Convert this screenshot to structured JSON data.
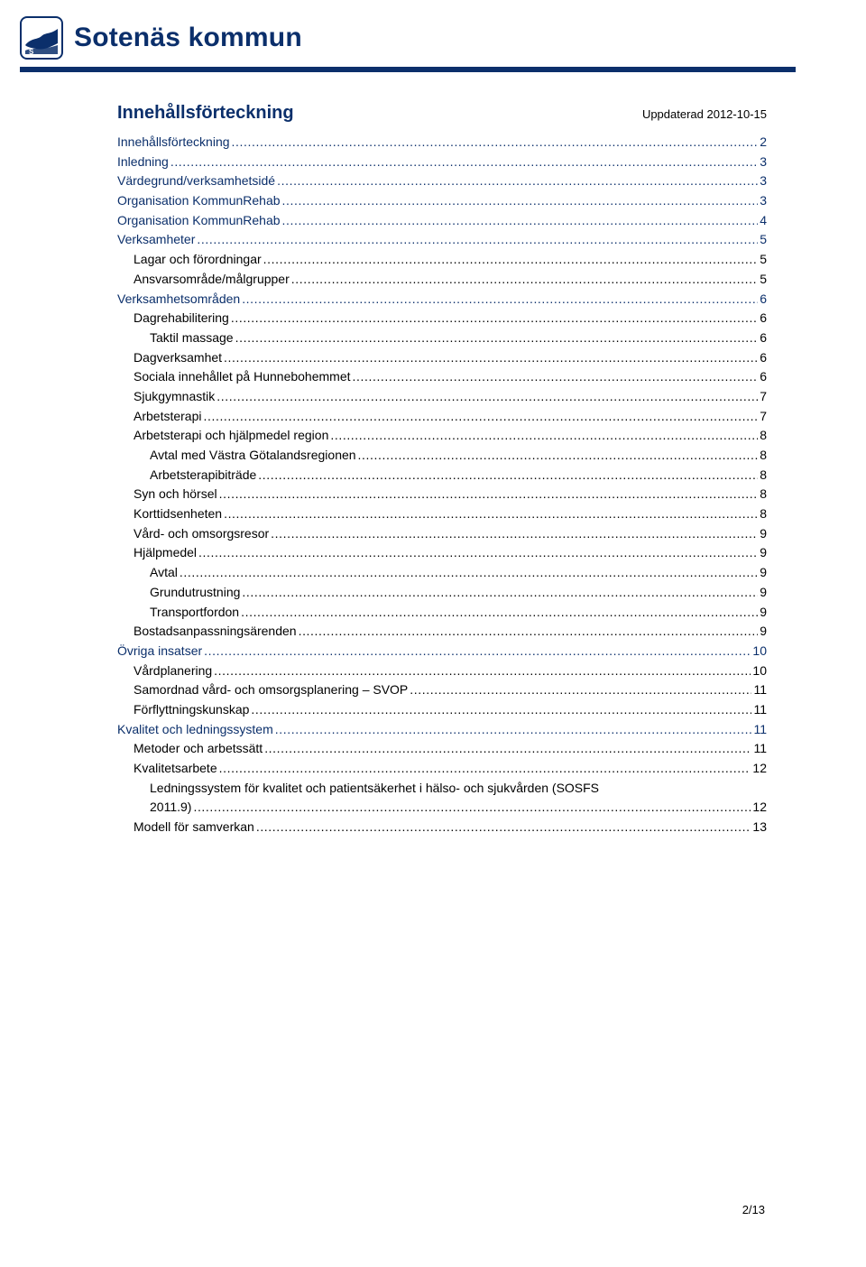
{
  "header": {
    "brand": "Sotenäs kommun",
    "logo_border_color": "#0b2f6b",
    "logo_fill_color": "#0b2f6b",
    "rule_color": "#0b2f6b"
  },
  "document": {
    "title": "Innehållsförteckning",
    "updated_label": "Uppdaterad 2012-10-15",
    "page_indicator": "2/13",
    "title_color": "#0b2f6b",
    "title_fontsize": 20,
    "body_fontsize": 14,
    "text_color": "#000000",
    "background": "#ffffff"
  },
  "toc": {
    "level0_color": "#0b2f6b",
    "entries": [
      {
        "level": 0,
        "label": "Innehållsförteckning",
        "page": "2"
      },
      {
        "level": 0,
        "label": "Inledning",
        "page": "3"
      },
      {
        "level": 0,
        "label": "Värdegrund/verksamhetsidé",
        "page": "3"
      },
      {
        "level": 0,
        "label": "Organisation KommunRehab",
        "page": "3"
      },
      {
        "level": 0,
        "label": "Organisation KommunRehab",
        "page": "4"
      },
      {
        "level": 0,
        "label": "Verksamheter",
        "page": "5"
      },
      {
        "level": 1,
        "label": "Lagar och förordningar",
        "page": "5"
      },
      {
        "level": 1,
        "label": "Ansvarsområde/målgrupper",
        "page": "5"
      },
      {
        "level": 0,
        "label": "Verksamhetsområden",
        "page": "6"
      },
      {
        "level": 1,
        "label": "Dagrehabilitering",
        "page": "6"
      },
      {
        "level": 2,
        "label": "Taktil massage",
        "page": "6"
      },
      {
        "level": 1,
        "label": "Dagverksamhet",
        "page": "6"
      },
      {
        "level": 1,
        "label": "Sociala innehållet på Hunnebohemmet",
        "page": "6"
      },
      {
        "level": 1,
        "label": "Sjukgymnastik",
        "page": "7"
      },
      {
        "level": 1,
        "label": "Arbetsterapi",
        "page": "7"
      },
      {
        "level": 1,
        "label": "Arbetsterapi och hjälpmedel region",
        "page": "8"
      },
      {
        "level": 2,
        "label": "Avtal med Västra Götalandsregionen",
        "page": "8"
      },
      {
        "level": 2,
        "label": "Arbetsterapibiträde",
        "page": "8"
      },
      {
        "level": 1,
        "label": "Syn och hörsel",
        "page": "8"
      },
      {
        "level": 1,
        "label": "Korttidsenheten",
        "page": "8"
      },
      {
        "level": 1,
        "label": "Vård- och omsorgsresor",
        "page": "9"
      },
      {
        "level": 1,
        "label": "Hjälpmedel",
        "page": "9"
      },
      {
        "level": 2,
        "label": "Avtal",
        "page": "9"
      },
      {
        "level": 2,
        "label": "Grundutrustning",
        "page": "9"
      },
      {
        "level": 2,
        "label": "Transportfordon",
        "page": "9"
      },
      {
        "level": 1,
        "label": "Bostadsanpassningsärenden",
        "page": "9"
      },
      {
        "level": 0,
        "label": "Övriga insatser",
        "page": "10"
      },
      {
        "level": 1,
        "label": "Vårdplanering",
        "page": "10"
      },
      {
        "level": 1,
        "label": "Samordnad vård- och omsorgsplanering – SVOP",
        "page": "11"
      },
      {
        "level": 1,
        "label": "Förflyttningskunskap",
        "page": "11"
      },
      {
        "level": 0,
        "label": "Kvalitet och ledningssystem",
        "page": "11"
      },
      {
        "level": 1,
        "label": "Metoder och arbetssätt",
        "page": "11"
      },
      {
        "level": 1,
        "label": "Kvalitetsarbete",
        "page": "12"
      },
      {
        "level": 2,
        "label": "Ledningssystem för kvalitet och patientsäkerhet i hälso- och sjukvården (SOSFS 2011.9)",
        "page": "12"
      },
      {
        "level": 1,
        "label": "Modell för samverkan",
        "page": "13"
      }
    ]
  }
}
